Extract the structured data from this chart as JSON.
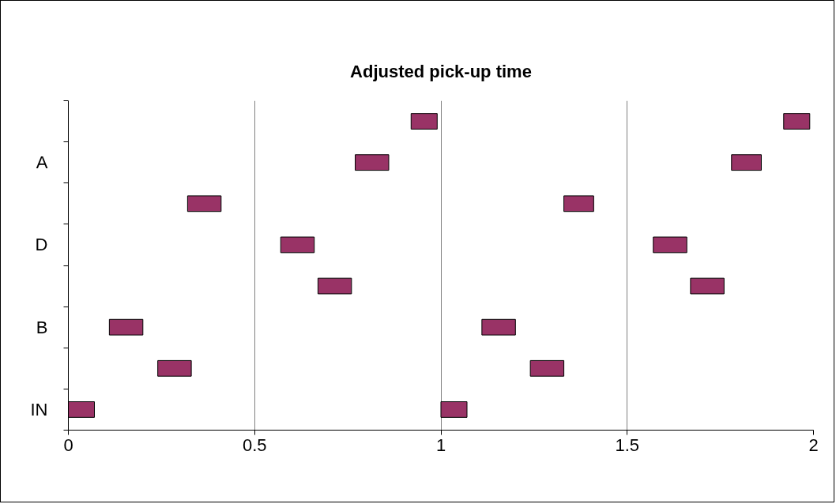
{
  "chart_data": {
    "type": "bar",
    "orientation": "horizontal",
    "title": "Adjusted pick-up time",
    "categories": [
      null,
      "A",
      null,
      "D",
      null,
      "B",
      null,
      "IN"
    ],
    "series": [
      {
        "color": "#993366",
        "base": [
          0.92,
          0.77,
          0.32,
          0.57,
          0.67,
          0.11,
          0.24,
          0.0
        ],
        "values": [
          0.07,
          0.09,
          0.09,
          0.09,
          0.09,
          0.09,
          0.09,
          0.07
        ]
      },
      {
        "color": "#993366",
        "base": [
          1.92,
          1.78,
          1.33,
          1.57,
          1.67,
          1.11,
          1.24,
          1.0
        ],
        "values": [
          0.07,
          0.08,
          0.08,
          0.09,
          0.09,
          0.09,
          0.09,
          0.07
        ]
      }
    ],
    "xlim": [
      0,
      2
    ],
    "xticks": [
      0,
      0.5,
      1,
      1.5,
      2
    ],
    "grid": "x"
  }
}
